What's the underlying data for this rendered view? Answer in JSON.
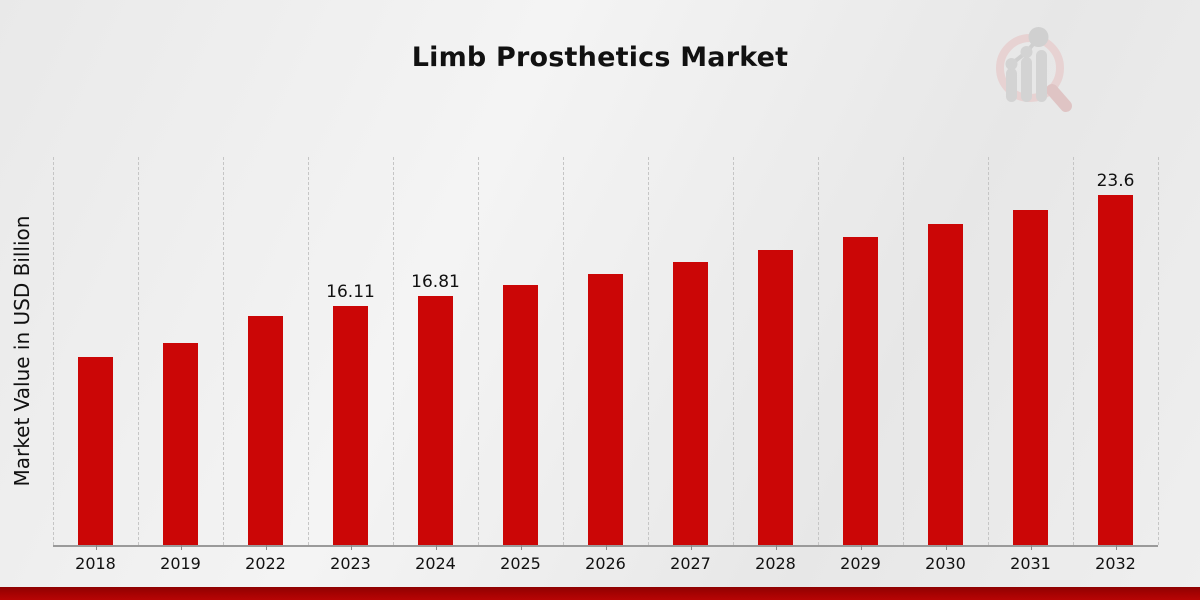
{
  "page": {
    "title": "Limb Prosthetics Market"
  },
  "watermark": {
    "icon": "magnifier-bar-chart-logo-icon",
    "ring_color": "#e7d2d2",
    "handle_color": "#dfc4c4",
    "bar_color": "#d3d3d3",
    "dot_color": "#d0d0d0",
    "line_color": "#cfcfcf"
  },
  "chart_data": {
    "type": "bar",
    "title": "Limb Prosthetics Market",
    "xlabel": "",
    "ylabel": "Market Value in USD Billion",
    "categories": [
      "2018",
      "2019",
      "2022",
      "2023",
      "2024",
      "2025",
      "2026",
      "2027",
      "2028",
      "2029",
      "2030",
      "2031",
      "2032"
    ],
    "values": [
      12.7,
      13.6,
      15.45,
      16.11,
      16.81,
      17.53,
      18.29,
      19.07,
      19.89,
      20.75,
      21.64,
      22.57,
      23.6
    ],
    "bar_labels": [
      "",
      "",
      "",
      "16.11",
      "16.81",
      "",
      "",
      "",
      "",
      "",
      "",
      "",
      "23.6"
    ],
    "bar_color": "#cb0606",
    "ylim": [
      0,
      26.16
    ],
    "grid": "vertical-dashed",
    "gridline_color": "#c5c5c5",
    "axis_color": "#9a9a9a",
    "legend": "none"
  },
  "footer": {
    "accent_color": "#b80404"
  }
}
